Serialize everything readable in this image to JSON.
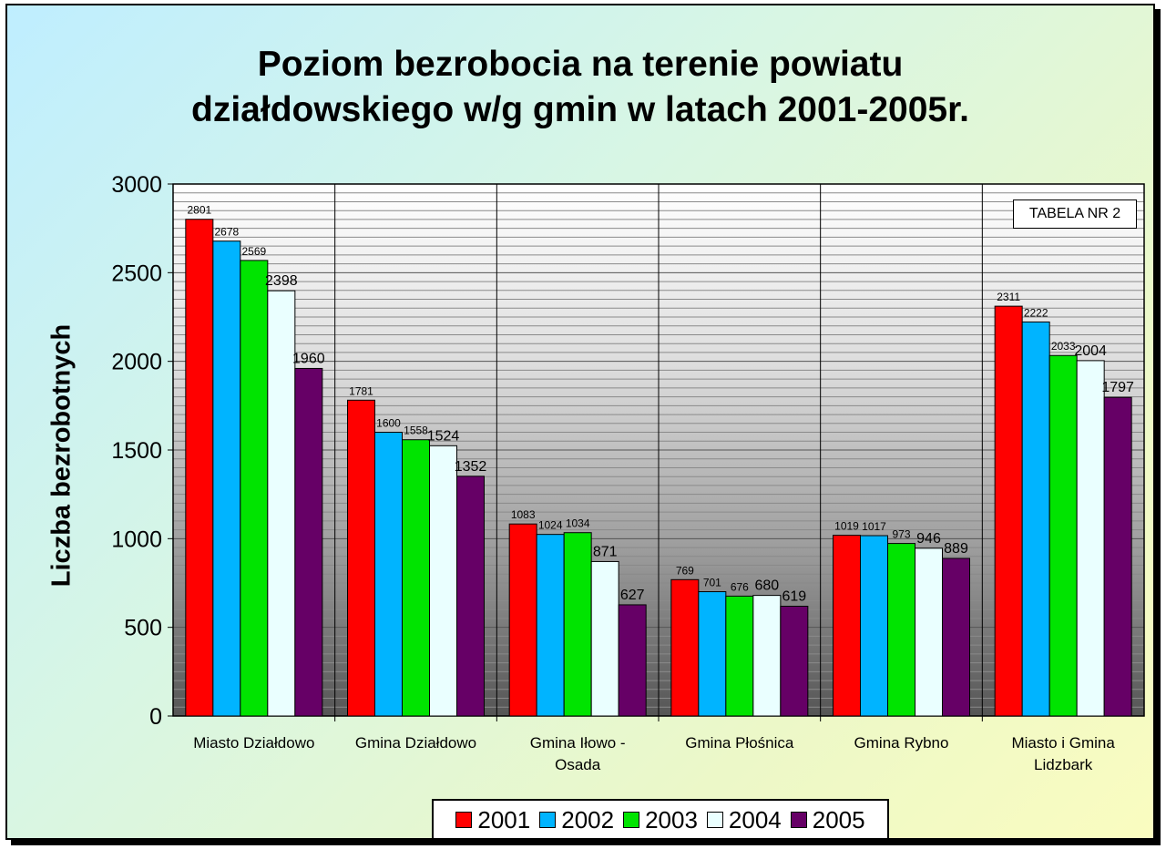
{
  "chart_data": {
    "type": "bar",
    "title_lines": [
      "Poziom bezrobocia na terenie powiatu",
      "działdowskiego w/g gmin w latach 2001-2005r."
    ],
    "ylabel": "Liczba bezrobotnych",
    "ylim": [
      0,
      3000
    ],
    "yticks": [
      0,
      500,
      1000,
      1500,
      2000,
      2500,
      3000
    ],
    "categories": [
      [
        "Miasto Działdowo"
      ],
      [
        "Gmina Działdowo"
      ],
      [
        "Gmina Iłowo -",
        "Osada"
      ],
      [
        "Gmina Płośnica"
      ],
      [
        "Gmina Rybno"
      ],
      [
        "Miasto i Gmina",
        "Lidzbark"
      ]
    ],
    "series": [
      {
        "name": "2001",
        "color": "#ff0000",
        "values": [
          2801,
          1781,
          1083,
          769,
          1019,
          2311
        ]
      },
      {
        "name": "2002",
        "color": "#00b4ff",
        "values": [
          2678,
          1600,
          1024,
          701,
          1017,
          2222
        ]
      },
      {
        "name": "2003",
        "color": "#00e400",
        "values": [
          2569,
          1558,
          1034,
          676,
          973,
          2033
        ]
      },
      {
        "name": "2004",
        "color": "#eaffff",
        "values": [
          2398,
          1524,
          871,
          680,
          946,
          2004
        ]
      },
      {
        "name": "2005",
        "color": "#660066",
        "values": [
          1960,
          1352,
          627,
          619,
          889,
          1797
        ]
      }
    ],
    "legend_position": "bottom",
    "grid": true,
    "annotation": "TABELA NR 2"
  }
}
